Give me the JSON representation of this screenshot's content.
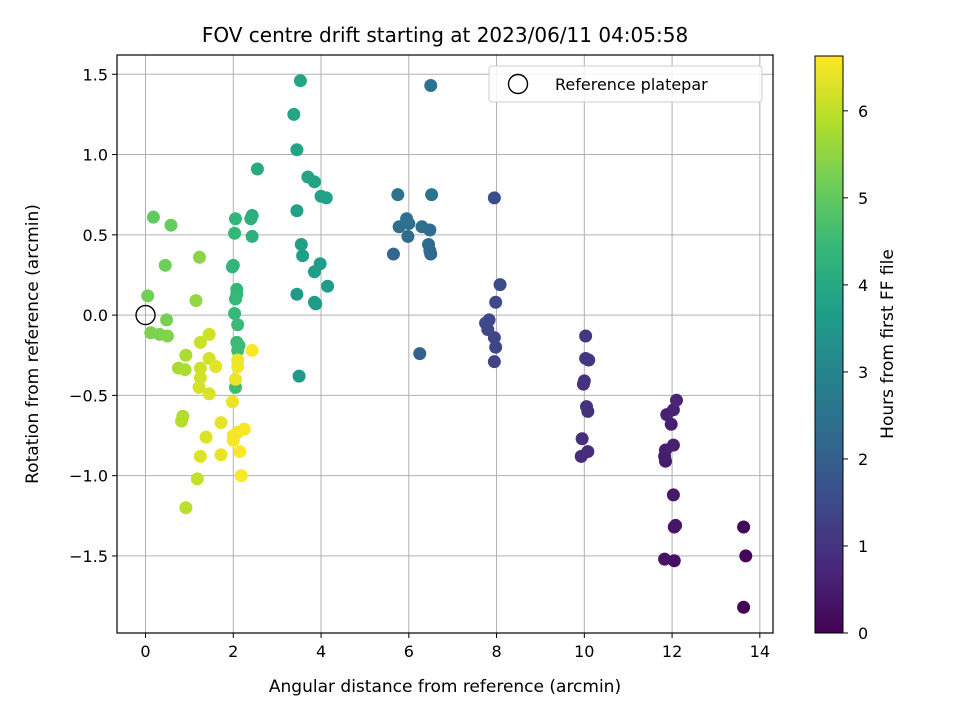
{
  "chart_data": {
    "type": "scatter",
    "title": "FOV centre drift starting at 2023/06/11 04:05:58",
    "xlabel": "Angular distance from reference (arcmin)",
    "ylabel": "Rotation from reference (arcmin)",
    "colorbar_label": "Hours from first FF file",
    "xlim": [
      -0.65,
      14.3
    ],
    "ylim": [
      -1.98,
      1.62
    ],
    "clim": [
      0,
      6.63
    ],
    "colormap": "viridis",
    "grid": true,
    "legend_placement": "top-right",
    "x_ticks": [
      0,
      2,
      4,
      6,
      8,
      10,
      12,
      14
    ],
    "x_tick_labels": [
      "0",
      "2",
      "4",
      "6",
      "8",
      "10",
      "12",
      "14"
    ],
    "y_ticks": [
      1.5,
      1.0,
      0.5,
      0.0,
      -0.5,
      -1.0,
      -1.5
    ],
    "y_tick_labels": [
      "1.5",
      "1.0",
      "0.5",
      "0.0",
      "−0.5",
      "−1.0",
      "−1.5"
    ],
    "colorbar_ticks": [
      0,
      1,
      2,
      3,
      4,
      5,
      6
    ],
    "colorbar_tick_labels": [
      "0",
      "1",
      "2",
      "3",
      "4",
      "5",
      "6"
    ],
    "reference": {
      "x": 0,
      "y": 0,
      "label": "Reference platepar"
    },
    "points": [
      {
        "x": 13.63,
        "y": -1.82,
        "c": 0.05
      },
      {
        "x": 13.68,
        "y": -1.5,
        "c": 0.1
      },
      {
        "x": 13.63,
        "y": -1.32,
        "c": 0.15
      },
      {
        "x": 12.05,
        "y": -1.53,
        "c": 0.3
      },
      {
        "x": 11.83,
        "y": -1.52,
        "c": 0.35
      },
      {
        "x": 12.08,
        "y": -1.31,
        "c": 0.4
      },
      {
        "x": 12.05,
        "y": -1.32,
        "c": 0.42
      },
      {
        "x": 12.03,
        "y": -1.12,
        "c": 0.45
      },
      {
        "x": 11.85,
        "y": -0.91,
        "c": 0.5
      },
      {
        "x": 11.83,
        "y": -0.88,
        "c": 0.52
      },
      {
        "x": 11.85,
        "y": -0.84,
        "c": 0.55
      },
      {
        "x": 12.03,
        "y": -0.81,
        "c": 0.58
      },
      {
        "x": 11.98,
        "y": -0.68,
        "c": 0.6
      },
      {
        "x": 11.88,
        "y": -0.62,
        "c": 0.62
      },
      {
        "x": 12.03,
        "y": -0.59,
        "c": 0.65
      },
      {
        "x": 12.1,
        "y": -0.53,
        "c": 0.68
      },
      {
        "x": 9.93,
        "y": -0.88,
        "c": 0.85
      },
      {
        "x": 10.08,
        "y": -0.85,
        "c": 0.88
      },
      {
        "x": 9.95,
        "y": -0.77,
        "c": 0.9
      },
      {
        "x": 10.08,
        "y": -0.6,
        "c": 0.92
      },
      {
        "x": 10.05,
        "y": -0.57,
        "c": 0.95
      },
      {
        "x": 9.98,
        "y": -0.43,
        "c": 0.98
      },
      {
        "x": 10.0,
        "y": -0.41,
        "c": 1.0
      },
      {
        "x": 10.03,
        "y": -0.27,
        "c": 1.02
      },
      {
        "x": 10.1,
        "y": -0.28,
        "c": 1.05
      },
      {
        "x": 10.03,
        "y": -0.13,
        "c": 1.08
      },
      {
        "x": 7.95,
        "y": -0.29,
        "c": 1.35
      },
      {
        "x": 7.98,
        "y": -0.2,
        "c": 1.38
      },
      {
        "x": 7.95,
        "y": -0.14,
        "c": 1.4
      },
      {
        "x": 7.8,
        "y": -0.09,
        "c": 1.42
      },
      {
        "x": 7.75,
        "y": -0.05,
        "c": 1.45
      },
      {
        "x": 7.83,
        "y": -0.03,
        "c": 1.48
      },
      {
        "x": 7.98,
        "y": 0.08,
        "c": 1.5
      },
      {
        "x": 8.08,
        "y": 0.19,
        "c": 1.52
      },
      {
        "x": 7.95,
        "y": 0.73,
        "c": 1.55
      },
      {
        "x": 6.25,
        "y": -0.24,
        "c": 2.1
      },
      {
        "x": 5.65,
        "y": 0.38,
        "c": 2.2
      },
      {
        "x": 6.5,
        "y": 0.38,
        "c": 2.25
      },
      {
        "x": 6.48,
        "y": 0.4,
        "c": 2.28
      },
      {
        "x": 6.45,
        "y": 0.44,
        "c": 2.3
      },
      {
        "x": 5.98,
        "y": 0.49,
        "c": 2.33
      },
      {
        "x": 6.48,
        "y": 0.53,
        "c": 2.36
      },
      {
        "x": 6.3,
        "y": 0.55,
        "c": 2.4
      },
      {
        "x": 5.78,
        "y": 0.55,
        "c": 2.42
      },
      {
        "x": 6.0,
        "y": 0.57,
        "c": 2.45
      },
      {
        "x": 5.95,
        "y": 0.6,
        "c": 2.48
      },
      {
        "x": 5.75,
        "y": 0.75,
        "c": 2.5
      },
      {
        "x": 6.52,
        "y": 0.75,
        "c": 2.52
      },
      {
        "x": 6.5,
        "y": 1.43,
        "c": 2.55
      },
      {
        "x": 3.5,
        "y": -0.38,
        "c": 3.55
      },
      {
        "x": 3.45,
        "y": 0.13,
        "c": 3.6
      },
      {
        "x": 3.88,
        "y": 0.07,
        "c": 3.62
      },
      {
        "x": 3.85,
        "y": 0.08,
        "c": 3.64
      },
      {
        "x": 4.15,
        "y": 0.18,
        "c": 3.66
      },
      {
        "x": 3.85,
        "y": 0.27,
        "c": 3.68
      },
      {
        "x": 3.98,
        "y": 0.32,
        "c": 3.7
      },
      {
        "x": 3.58,
        "y": 0.37,
        "c": 3.72
      },
      {
        "x": 3.55,
        "y": 0.44,
        "c": 3.74
      },
      {
        "x": 3.45,
        "y": 0.65,
        "c": 3.76
      },
      {
        "x": 4.12,
        "y": 0.73,
        "c": 3.78
      },
      {
        "x": 4.0,
        "y": 0.74,
        "c": 3.8
      },
      {
        "x": 3.85,
        "y": 0.83,
        "c": 3.82
      },
      {
        "x": 3.7,
        "y": 0.86,
        "c": 3.84
      },
      {
        "x": 3.45,
        "y": 1.03,
        "c": 3.86
      },
      {
        "x": 3.38,
        "y": 1.25,
        "c": 3.88
      },
      {
        "x": 3.53,
        "y": 1.46,
        "c": 3.9
      },
      {
        "x": 2.55,
        "y": 0.91,
        "c": 4.0
      },
      {
        "x": 2.43,
        "y": 0.62,
        "c": 4.1
      },
      {
        "x": 2.4,
        "y": 0.6,
        "c": 4.15
      },
      {
        "x": 2.43,
        "y": 0.49,
        "c": 4.2
      },
      {
        "x": 2.0,
        "y": 0.31,
        "c": 4.3
      },
      {
        "x": 1.98,
        "y": 0.3,
        "c": 4.32
      },
      {
        "x": 2.05,
        "y": 0.6,
        "c": 4.35
      },
      {
        "x": 2.03,
        "y": 0.51,
        "c": 4.38
      },
      {
        "x": 2.08,
        "y": 0.16,
        "c": 4.4
      },
      {
        "x": 2.08,
        "y": 0.13,
        "c": 4.42
      },
      {
        "x": 2.05,
        "y": 0.1,
        "c": 4.44
      },
      {
        "x": 2.03,
        "y": 0.01,
        "c": 4.46
      },
      {
        "x": 2.1,
        "y": -0.06,
        "c": 4.48
      },
      {
        "x": 2.08,
        "y": -0.17,
        "c": 4.5
      },
      {
        "x": 2.13,
        "y": -0.19,
        "c": 4.52
      },
      {
        "x": 2.1,
        "y": -0.22,
        "c": 4.54
      },
      {
        "x": 2.05,
        "y": -0.45,
        "c": 4.56
      },
      {
        "x": 0.18,
        "y": 0.61,
        "c": 5.0
      },
      {
        "x": 0.58,
        "y": 0.56,
        "c": 5.05
      },
      {
        "x": 0.45,
        "y": 0.31,
        "c": 5.15
      },
      {
        "x": 0.05,
        "y": 0.12,
        "c": 5.2
      },
      {
        "x": 0.48,
        "y": -0.03,
        "c": 5.25
      },
      {
        "x": 0.12,
        "y": -0.11,
        "c": 5.3
      },
      {
        "x": 0.32,
        "y": -0.12,
        "c": 5.32
      },
      {
        "x": 0.5,
        "y": -0.13,
        "c": 5.35
      },
      {
        "x": 1.23,
        "y": 0.36,
        "c": 5.45
      },
      {
        "x": 1.15,
        "y": 0.09,
        "c": 5.55
      },
      {
        "x": 0.75,
        "y": -0.33,
        "c": 5.75
      },
      {
        "x": 0.9,
        "y": -0.34,
        "c": 5.78
      },
      {
        "x": 0.92,
        "y": -0.25,
        "c": 5.8
      },
      {
        "x": 0.85,
        "y": -0.63,
        "c": 5.85
      },
      {
        "x": 0.82,
        "y": -0.66,
        "c": 5.88
      },
      {
        "x": 0.92,
        "y": -1.2,
        "c": 5.95
      },
      {
        "x": 1.18,
        "y": -1.02,
        "c": 6.05
      },
      {
        "x": 1.25,
        "y": -0.17,
        "c": 6.1
      },
      {
        "x": 1.45,
        "y": -0.12,
        "c": 6.15
      },
      {
        "x": 1.25,
        "y": -0.33,
        "c": 6.15
      },
      {
        "x": 1.45,
        "y": -0.27,
        "c": 6.2
      },
      {
        "x": 1.25,
        "y": -0.39,
        "c": 6.2
      },
      {
        "x": 1.22,
        "y": -0.45,
        "c": 6.22
      },
      {
        "x": 1.45,
        "y": -0.49,
        "c": 6.25
      },
      {
        "x": 1.38,
        "y": -0.76,
        "c": 6.28
      },
      {
        "x": 1.25,
        "y": -0.88,
        "c": 6.3
      },
      {
        "x": 1.6,
        "y": -0.32,
        "c": 6.35
      },
      {
        "x": 1.72,
        "y": -0.67,
        "c": 6.38
      },
      {
        "x": 1.72,
        "y": -0.87,
        "c": 6.42
      },
      {
        "x": 2.05,
        "y": -0.4,
        "c": 6.45
      },
      {
        "x": 1.98,
        "y": -0.54,
        "c": 6.45
      },
      {
        "x": 2.1,
        "y": -0.28,
        "c": 6.5
      },
      {
        "x": 2.1,
        "y": -0.32,
        "c": 6.5
      },
      {
        "x": 2.1,
        "y": -0.73,
        "c": 6.52
      },
      {
        "x": 2.0,
        "y": -0.75,
        "c": 6.55
      },
      {
        "x": 2.0,
        "y": -0.78,
        "c": 6.55
      },
      {
        "x": 2.25,
        "y": -0.71,
        "c": 6.58
      },
      {
        "x": 2.15,
        "y": -0.85,
        "c": 6.6
      },
      {
        "x": 2.43,
        "y": -0.22,
        "c": 6.6
      },
      {
        "x": 2.18,
        "y": -1.0,
        "c": 6.62
      }
    ]
  }
}
